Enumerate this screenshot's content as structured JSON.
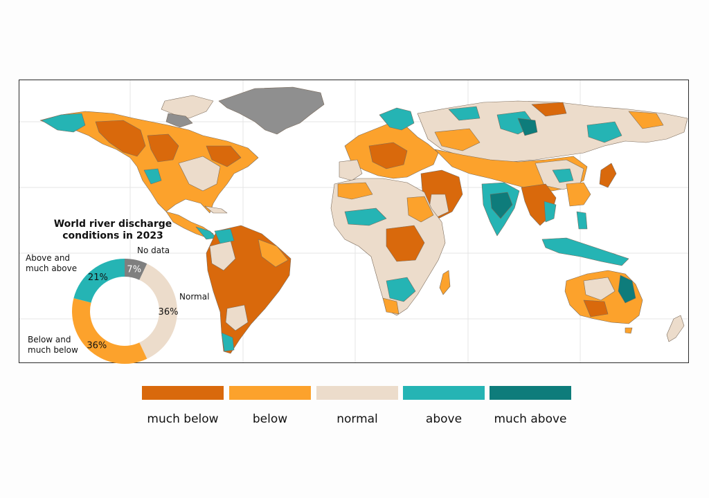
{
  "chart_data": {
    "type": "pie",
    "variant": "donut",
    "title": "World river discharge conditions in 2023",
    "title_lines": [
      "World river discharge",
      "conditions in 2023"
    ],
    "slices": [
      {
        "label": "No data",
        "label_lines": [
          "No data"
        ],
        "value": 7,
        "value_label": "7%",
        "color": "#7f7f7f"
      },
      {
        "label": "Normal",
        "label_lines": [
          "Normal"
        ],
        "value": 36,
        "value_label": "36%",
        "color": "#ecdccb"
      },
      {
        "label": "Below and much below",
        "label_lines": [
          "Below and",
          "much below"
        ],
        "value": 36,
        "value_label": "36%",
        "color": "#fca22c"
      },
      {
        "label": "Above and much above",
        "label_lines": [
          "Above and",
          "much above"
        ],
        "value": 21,
        "value_label": "21%",
        "color": "#25b4b4"
      }
    ]
  },
  "map": {
    "ocean_color": "#ffffff",
    "no_data_color": "#8f8f8f"
  },
  "legend": {
    "items": [
      {
        "label": "much below",
        "color": "#d9690c"
      },
      {
        "label": "below",
        "color": "#fca22c"
      },
      {
        "label": "normal",
        "color": "#ecdccb"
      },
      {
        "label": "above",
        "color": "#25b4b4"
      },
      {
        "label": "much above",
        "color": "#0e7c7b"
      }
    ]
  }
}
